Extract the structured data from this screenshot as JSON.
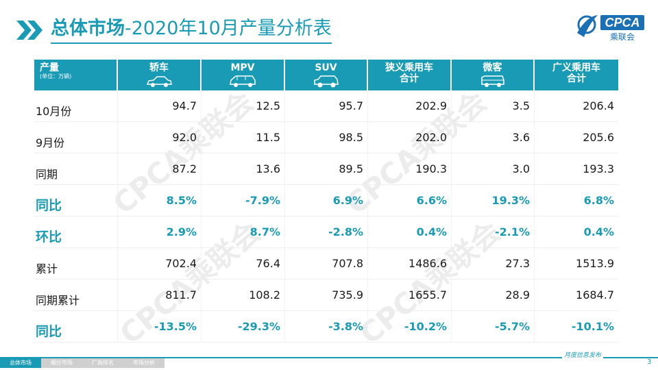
{
  "header": {
    "title_bold": "总体市场",
    "title_rest": "-2020年10月产量分析表"
  },
  "logo": {
    "text": "CPCA",
    "subtext": "乘联会",
    "icon": "cpca-logo-icon"
  },
  "table": {
    "columns": [
      {
        "label": "产量",
        "sub": "(单位：万辆)"
      },
      {
        "label": "轿车",
        "icon": "sedan-icon"
      },
      {
        "label": "MPV",
        "icon": "mpv-icon"
      },
      {
        "label": "SUV",
        "icon": "suv-icon"
      },
      {
        "label": "狭义乘用车",
        "label2": "合计"
      },
      {
        "label": "微客",
        "icon": "minivan-icon"
      },
      {
        "label": "广义乘用车",
        "label2": "合计"
      }
    ],
    "rows": [
      {
        "label": "10月份",
        "values": [
          "94.7",
          "12.5",
          "95.7",
          "202.9",
          "3.5",
          "206.4"
        ]
      },
      {
        "label": "9月份",
        "values": [
          "92.0",
          "11.5",
          "98.5",
          "202.0",
          "3.6",
          "205.6"
        ]
      },
      {
        "label": "同期",
        "values": [
          "87.2",
          "13.6",
          "89.5",
          "190.3",
          "3.0",
          "193.3"
        ]
      },
      {
        "label": "同比",
        "values": [
          "8.5%",
          "-7.9%",
          "6.9%",
          "6.6%",
          "19.3%",
          "6.8%"
        ]
      },
      {
        "label": "环比",
        "values": [
          "2.9%",
          "8.7%",
          "-2.8%",
          "0.4%",
          "-2.1%",
          "0.4%"
        ]
      },
      {
        "label": "累计",
        "values": [
          "702.4",
          "76.4",
          "707.8",
          "1486.6",
          "27.3",
          "1513.9"
        ]
      },
      {
        "label": "同期累计",
        "values": [
          "811.7",
          "108.2",
          "735.9",
          "1655.7",
          "28.9",
          "1684.7"
        ]
      },
      {
        "label": "同比",
        "values": [
          "-13.5%",
          "-29.3%",
          "-3.8%",
          "-10.2%",
          "-5.7%",
          "-10.1%"
        ]
      }
    ]
  },
  "watermark": "CPCA乘联会",
  "footer": {
    "tabs": [
      "总体市场",
      "细分市场",
      "厂商排名",
      "市场分析"
    ],
    "slogan": "月度信息发布",
    "page_number": "3"
  },
  "colors": {
    "accent": "#1a9bb5"
  }
}
